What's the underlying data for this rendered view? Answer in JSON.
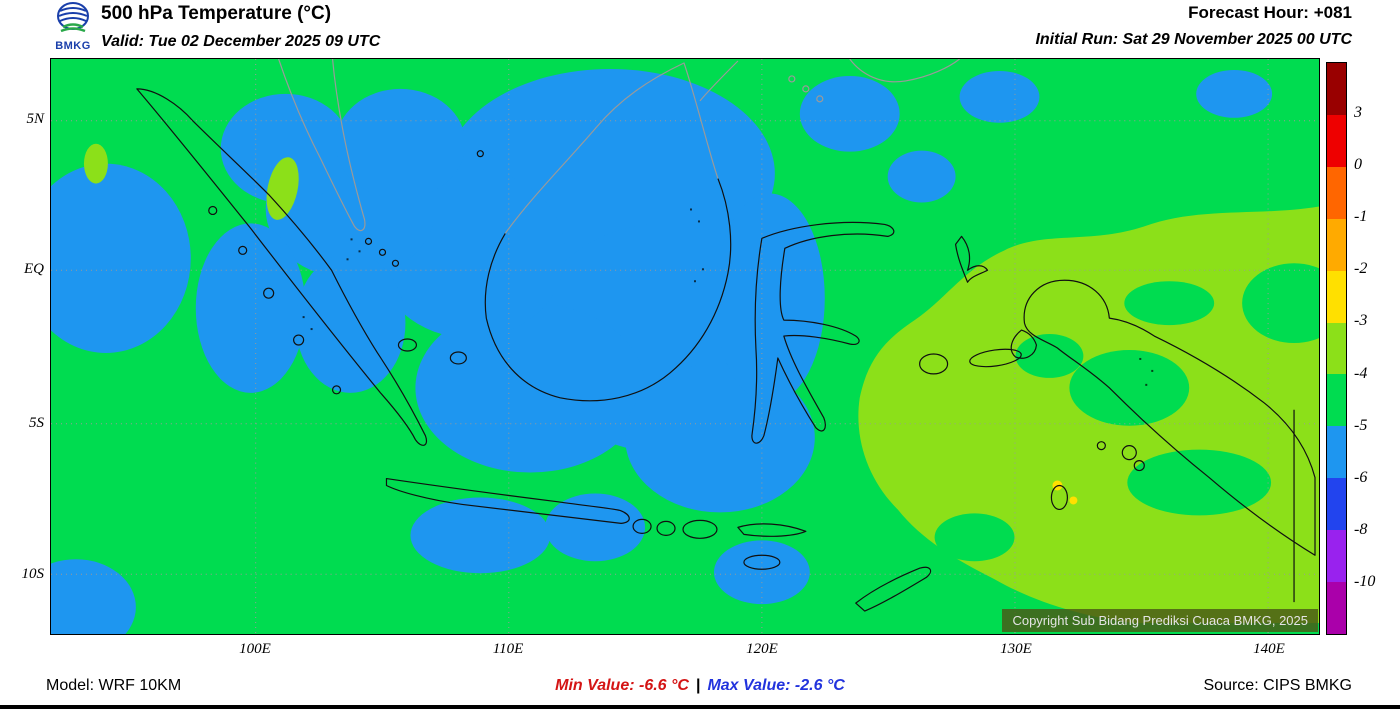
{
  "header": {
    "logo_text": "BMKG",
    "title": "500 hPa Temperature (°C)",
    "valid": "Valid: Tue 02 December 2025 09 UTC",
    "forecast_hour": "Forecast Hour: +081",
    "initial_run": "Initial Run: Sat 29 November 2025 00 UTC"
  },
  "map": {
    "y_axis_labels": [
      "5N",
      "EQ",
      "5S",
      "10S"
    ],
    "x_axis_labels": [
      "100E",
      "110E",
      "120E",
      "130E",
      "140E"
    ],
    "copyright": "Copyright Sub Bidang Prediksi Cuaca BMKG, 2025",
    "fill_colors": {
      "green": "#00dc50",
      "blue": "#1e96f0",
      "yellow_green": "#8ce019"
    }
  },
  "colorbar": {
    "labels": [
      "3",
      "0",
      "-1",
      "-2",
      "-3",
      "-4",
      "-5",
      "-6",
      "-8",
      "-10"
    ],
    "colors": [
      "#990000",
      "#ee0000",
      "#ff6600",
      "#ffaa00",
      "#ffe000",
      "#8ce019",
      "#00dc50",
      "#1e96f0",
      "#2244ee",
      "#9922ee",
      "#aa00aa"
    ]
  },
  "footer": {
    "model": "Model: WRF 10KM",
    "min_value": "Min Value: -6.6 °C",
    "separator": "|",
    "max_value": "Max Value: -2.6 °C",
    "source": "Source: CIPS BMKG"
  }
}
